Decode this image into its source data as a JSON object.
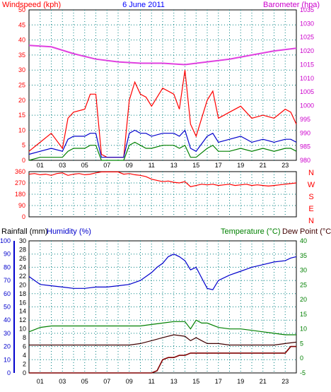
{
  "colors": {
    "wind_speed": "#ff0000",
    "wind_gust_trace": "#0000cc",
    "wind_lull_trace": "#008000",
    "barometer": "#e040e0",
    "wind_direction": "#ff0000",
    "rainfall": "#800000",
    "humidity": "#0000cc",
    "temperature": "#008000",
    "dew_point": "#400000",
    "grid": "#008080",
    "axis_wind": "#ff0000",
    "axis_baro": "#cc00cc",
    "axis_humidity": "#0000cc",
    "axis_temperature": "#008000",
    "axis_rain": "#000000",
    "title": "#0000ff"
  },
  "chart_data": [
    {
      "type": "line",
      "title": "6 June 2011",
      "ylabel": "Windspeed (kph)",
      "ylabel_right": "Barometer (hpa)",
      "ylim": [
        0,
        50
      ],
      "ylim_right": [
        980,
        1035
      ],
      "yticks": [
        "0",
        "5",
        "10",
        "15",
        "20",
        "25",
        "30",
        "35",
        "40",
        "45",
        "50"
      ],
      "yticks_right": [
        "980",
        "985",
        "990",
        "995",
        "1000",
        "1005",
        "1010",
        "1015",
        "1020",
        "1025",
        "1030",
        "1035"
      ],
      "xticks": [
        "01",
        "03",
        "05",
        "07",
        "09",
        "11",
        "13",
        "15",
        "17",
        "19",
        "21",
        "23"
      ],
      "grid": true,
      "series": [
        {
          "key": "wind_speed",
          "x": [
            0,
            1,
            2,
            3,
            3.5,
            4,
            5,
            5.5,
            6,
            6.5,
            7,
            8,
            8.5,
            9,
            9.5,
            10,
            10.5,
            11,
            12,
            13,
            13.5,
            14,
            14.5,
            15,
            16,
            16.5,
            17,
            18,
            19,
            20,
            21,
            22,
            23,
            23.5,
            24
          ],
          "y": [
            3,
            6,
            9,
            4,
            14,
            16,
            17,
            22,
            22,
            2,
            1,
            1,
            1,
            20,
            26,
            22,
            21,
            18,
            24,
            22,
            17,
            30,
            12,
            8,
            20,
            23,
            14,
            16,
            18,
            14,
            15,
            14,
            17,
            16,
            12
          ]
        },
        {
          "key": "wind_gust_trace",
          "x": [
            0,
            1,
            2,
            3,
            3.5,
            4,
            5,
            5.5,
            6,
            6.5,
            7,
            8,
            8.5,
            9,
            9.5,
            10,
            10.5,
            11,
            12,
            13,
            13.5,
            14,
            14.5,
            15,
            16,
            16.5,
            17,
            18,
            19,
            20,
            21,
            22,
            23,
            23.5,
            24
          ],
          "y": [
            2,
            3,
            4,
            3,
            7,
            8,
            8,
            9,
            9,
            1,
            1,
            1,
            1,
            9,
            10,
            9,
            9,
            8,
            9,
            9,
            8,
            10,
            4,
            3,
            8,
            9,
            6,
            7,
            8,
            6,
            7,
            6,
            7,
            7,
            6
          ]
        },
        {
          "key": "wind_lull_trace",
          "x": [
            0,
            1,
            2,
            3,
            3.5,
            4,
            5,
            5.5,
            6,
            6.5,
            7,
            8,
            8.5,
            9,
            9.5,
            10,
            10.5,
            11,
            12,
            13,
            13.5,
            14,
            14.5,
            15,
            16,
            16.5,
            17,
            18,
            19,
            20,
            21,
            22,
            23,
            23.5,
            24
          ],
          "y": [
            0,
            1,
            1,
            1,
            3,
            4,
            4,
            5,
            5,
            0,
            0,
            0,
            0,
            5,
            6,
            5,
            4,
            4,
            5,
            5,
            4,
            5,
            1,
            1,
            4,
            5,
            3,
            3,
            4,
            3,
            4,
            3,
            4,
            4,
            3
          ]
        },
        {
          "key": "barometer",
          "axis": "right",
          "x": [
            0,
            2,
            4,
            6,
            8,
            10,
            12,
            14,
            16,
            18,
            20,
            22,
            24
          ],
          "y": [
            1022,
            1021.5,
            1019,
            1017,
            1016,
            1015.5,
            1015.5,
            1015,
            1016,
            1017,
            1018.5,
            1020,
            1021
          ]
        }
      ]
    },
    {
      "type": "scatter",
      "yticks": [
        "0",
        "90",
        "180",
        "270",
        "360"
      ],
      "ylim": [
        0,
        360
      ],
      "compass_labels": [
        "N",
        "W",
        "S",
        "E",
        "N"
      ],
      "xticks": [
        "01",
        "03",
        "05",
        "07",
        "09",
        "11",
        "13",
        "15",
        "17",
        "19",
        "21",
        "23"
      ],
      "grid": true,
      "series": [
        {
          "key": "wind_direction",
          "x": [
            0,
            0.5,
            1,
            1.5,
            2,
            2.5,
            3,
            3.5,
            4,
            4.5,
            5,
            5.5,
            6,
            6.5,
            7,
            7.5,
            8,
            8.5,
            9,
            9.5,
            10,
            10.5,
            11,
            11.5,
            12,
            12.5,
            13,
            13.5,
            14,
            14.5,
            15,
            15.5,
            16,
            16.5,
            17,
            17.5,
            18,
            18.5,
            19,
            19.5,
            20,
            20.5,
            21,
            21.5,
            22,
            22.5,
            23,
            23.5,
            24
          ],
          "y": [
            340,
            345,
            335,
            340,
            330,
            345,
            350,
            330,
            340,
            345,
            335,
            340,
            350,
            358,
            358,
            358,
            358,
            340,
            345,
            335,
            330,
            320,
            300,
            290,
            280,
            285,
            275,
            270,
            280,
            240,
            250,
            260,
            255,
            260,
            250,
            255,
            260,
            250,
            255,
            260,
            250,
            255,
            250,
            245,
            250,
            255,
            260,
            265,
            270
          ]
        }
      ]
    },
    {
      "type": "line",
      "ylabel": "Rainfall (mm)",
      "ylabel_humidity": "Humidity (%)",
      "ylabel_right": "Temperature (°C)",
      "ylabel_right2": "Dew Point (°C)",
      "ylim_humidity": [
        0,
        100
      ],
      "ylim_rain": [
        0,
        30
      ],
      "ylim_temp": [
        -5,
        40
      ],
      "yticks_humidity": [
        "0",
        "10",
        "20",
        "30",
        "40",
        "50",
        "60",
        "70",
        "80",
        "90",
        "100"
      ],
      "yticks_rain": [
        "0",
        "2",
        "4",
        "6",
        "8",
        "10",
        "12",
        "14",
        "16",
        "18",
        "20",
        "22",
        "24",
        "26",
        "28",
        "30"
      ],
      "yticks_temp": [
        "-5",
        "0",
        "5",
        "10",
        "15",
        "20",
        "25",
        "30",
        "35",
        "40"
      ],
      "xticks": [
        "01",
        "03",
        "05",
        "07",
        "09",
        "11",
        "13",
        "15",
        "17",
        "19",
        "21",
        "23"
      ],
      "grid": true,
      "series": [
        {
          "key": "humidity",
          "axis": "humidity",
          "x": [
            0,
            0.5,
            1,
            2,
            3,
            4,
            5,
            6,
            7,
            8,
            9,
            10,
            11,
            11.5,
            12,
            12.5,
            13,
            13.5,
            14,
            14.5,
            15,
            15.5,
            16,
            16.5,
            17,
            18,
            19,
            20,
            21,
            22,
            23,
            23.5,
            24
          ],
          "y": [
            73,
            70,
            67,
            66,
            65,
            64,
            64,
            65,
            65,
            66,
            67,
            70,
            76,
            80,
            83,
            88,
            90,
            88,
            85,
            78,
            80,
            72,
            64,
            63,
            70,
            74,
            77,
            80,
            82,
            84,
            85,
            87,
            88
          ]
        },
        {
          "key": "temperature",
          "axis": "temp",
          "x": [
            0,
            1,
            2,
            3,
            4,
            5,
            6,
            7,
            8,
            9,
            10,
            11,
            12,
            13,
            14,
            14.5,
            15,
            15.5,
            16,
            17,
            18,
            19,
            20,
            21,
            22,
            23,
            24
          ],
          "y": [
            9,
            10.5,
            11,
            11,
            11,
            11,
            11,
            11,
            11,
            11,
            11,
            11.5,
            12,
            12.5,
            12.5,
            10,
            13,
            12,
            12,
            10.5,
            10,
            10,
            9.5,
            9,
            8.5,
            8,
            8
          ]
        },
        {
          "key": "dew_point",
          "axis": "temp",
          "x": [
            0,
            1,
            2,
            3,
            4,
            5,
            6,
            7,
            8,
            9,
            10,
            11,
            12,
            13,
            14,
            14.5,
            15,
            15.5,
            16,
            17,
            18,
            19,
            20,
            21,
            22,
            23,
            24
          ],
          "y": [
            4.5,
            4.5,
            4.5,
            4.5,
            4.5,
            4.5,
            4.5,
            4.5,
            4.5,
            4.5,
            5,
            6,
            7,
            8,
            7.5,
            6,
            7,
            6,
            5,
            5,
            4.5,
            4.5,
            4.5,
            4.5,
            4.5,
            5,
            5.5
          ]
        },
        {
          "key": "rainfall",
          "axis": "rain",
          "x": [
            0,
            1,
            2,
            3,
            4,
            5,
            6,
            7,
            8,
            9,
            10,
            11,
            11.5,
            12,
            12.5,
            13,
            13.5,
            14,
            14.5,
            15,
            16,
            17,
            18,
            19,
            20,
            21,
            22,
            23,
            23.5,
            24
          ],
          "y": [
            0,
            0,
            0,
            0,
            0,
            0,
            0,
            0,
            0,
            0,
            0,
            0,
            0.5,
            3,
            3.5,
            3.5,
            4,
            4,
            4.5,
            4.5,
            4.5,
            4.5,
            4.5,
            4.5,
            4.5,
            4.5,
            4.5,
            4.5,
            6,
            6
          ]
        }
      ]
    }
  ]
}
